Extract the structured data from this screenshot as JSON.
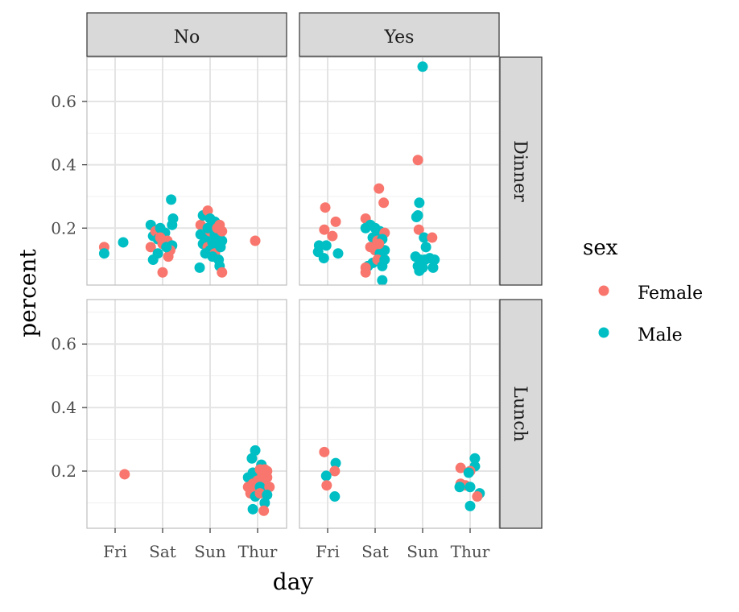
{
  "chart_data": {
    "type": "scatter",
    "xlabel": "day",
    "ylabel": "percent",
    "categories": [
      "Fri",
      "Sat",
      "Sun",
      "Thur"
    ],
    "ylim": [
      0.02,
      0.74
    ],
    "yticks": [
      0.2,
      0.4,
      0.6
    ],
    "grid": true,
    "legend": {
      "title": "sex",
      "position": "right",
      "entries": [
        {
          "name": "Female",
          "color": "#F8766D"
        },
        {
          "name": "Male",
          "color": "#00BFC4"
        }
      ]
    },
    "facet_cols": [
      "No",
      "Yes"
    ],
    "facet_rows": [
      "Dinner",
      "Lunch"
    ],
    "panels": [
      {
        "col": "No",
        "row": "Dinner",
        "points": [
          {
            "x": "Fri",
            "j": -0.23,
            "y": 0.14,
            "sex": "Female"
          },
          {
            "x": "Fri",
            "j": -0.23,
            "y": 0.12,
            "sex": "Male"
          },
          {
            "x": "Fri",
            "j": 0.17,
            "y": 0.155,
            "sex": "Male"
          },
          {
            "x": "Sat",
            "j": -0.25,
            "y": 0.21,
            "sex": "Male"
          },
          {
            "x": "Sat",
            "j": -0.2,
            "y": 0.175,
            "sex": "Male"
          },
          {
            "x": "Sat",
            "j": -0.25,
            "y": 0.14,
            "sex": "Female"
          },
          {
            "x": "Sat",
            "j": -0.15,
            "y": 0.19,
            "sex": "Female"
          },
          {
            "x": "Sat",
            "j": -0.1,
            "y": 0.165,
            "sex": "Male"
          },
          {
            "x": "Sat",
            "j": -0.05,
            "y": 0.2,
            "sex": "Male"
          },
          {
            "x": "Sat",
            "j": 0.0,
            "y": 0.15,
            "sex": "Female"
          },
          {
            "x": "Sat",
            "j": 0.05,
            "y": 0.185,
            "sex": "Male"
          },
          {
            "x": "Sat",
            "j": 0.1,
            "y": 0.16,
            "sex": "Female"
          },
          {
            "x": "Sat",
            "j": 0.15,
            "y": 0.13,
            "sex": "Male"
          },
          {
            "x": "Sat",
            "j": 0.2,
            "y": 0.21,
            "sex": "Male"
          },
          {
            "x": "Sat",
            "j": 0.2,
            "y": 0.145,
            "sex": "Male"
          },
          {
            "x": "Sat",
            "j": 0.18,
            "y": 0.29,
            "sex": "Male"
          },
          {
            "x": "Sat",
            "j": 0.22,
            "y": 0.23,
            "sex": "Male"
          },
          {
            "x": "Sat",
            "j": -0.2,
            "y": 0.1,
            "sex": "Male"
          },
          {
            "x": "Sat",
            "j": -0.1,
            "y": 0.12,
            "sex": "Male"
          },
          {
            "x": "Sat",
            "j": 0.0,
            "y": 0.06,
            "sex": "Female"
          },
          {
            "x": "Sat",
            "j": 0.12,
            "y": 0.11,
            "sex": "Female"
          },
          {
            "x": "Sat",
            "j": 0.16,
            "y": 0.13,
            "sex": "Female"
          },
          {
            "x": "Sat",
            "j": -0.05,
            "y": 0.17,
            "sex": "Female"
          },
          {
            "x": "Sat",
            "j": 0.08,
            "y": 0.14,
            "sex": "Male"
          },
          {
            "x": "Sun",
            "j": -0.2,
            "y": 0.21,
            "sex": "Female"
          },
          {
            "x": "Sun",
            "j": -0.15,
            "y": 0.24,
            "sex": "Male"
          },
          {
            "x": "Sun",
            "j": -0.05,
            "y": 0.255,
            "sex": "Female"
          },
          {
            "x": "Sun",
            "j": 0.0,
            "y": 0.23,
            "sex": "Male"
          },
          {
            "x": "Sun",
            "j": 0.1,
            "y": 0.22,
            "sex": "Male"
          },
          {
            "x": "Sun",
            "j": 0.2,
            "y": 0.21,
            "sex": "Female"
          },
          {
            "x": "Sun",
            "j": -0.2,
            "y": 0.18,
            "sex": "Male"
          },
          {
            "x": "Sun",
            "j": -0.1,
            "y": 0.17,
            "sex": "Male"
          },
          {
            "x": "Sun",
            "j": 0.0,
            "y": 0.19,
            "sex": "Female"
          },
          {
            "x": "Sun",
            "j": 0.1,
            "y": 0.18,
            "sex": "Male"
          },
          {
            "x": "Sun",
            "j": 0.2,
            "y": 0.17,
            "sex": "Male"
          },
          {
            "x": "Sun",
            "j": -0.15,
            "y": 0.15,
            "sex": "Male"
          },
          {
            "x": "Sun",
            "j": -0.05,
            "y": 0.14,
            "sex": "Female"
          },
          {
            "x": "Sun",
            "j": 0.05,
            "y": 0.155,
            "sex": "Male"
          },
          {
            "x": "Sun",
            "j": 0.15,
            "y": 0.15,
            "sex": "Male"
          },
          {
            "x": "Sun",
            "j": 0.25,
            "y": 0.16,
            "sex": "Male"
          },
          {
            "x": "Sun",
            "j": -0.1,
            "y": 0.12,
            "sex": "Male"
          },
          {
            "x": "Sun",
            "j": 0.0,
            "y": 0.13,
            "sex": "Male"
          },
          {
            "x": "Sun",
            "j": 0.1,
            "y": 0.12,
            "sex": "Female"
          },
          {
            "x": "Sun",
            "j": 0.18,
            "y": 0.1,
            "sex": "Male"
          },
          {
            "x": "Sun",
            "j": -0.22,
            "y": 0.075,
            "sex": "Male"
          },
          {
            "x": "Sun",
            "j": 0.2,
            "y": 0.08,
            "sex": "Male"
          },
          {
            "x": "Sun",
            "j": 0.25,
            "y": 0.06,
            "sex": "Female"
          },
          {
            "x": "Sun",
            "j": 0.05,
            "y": 0.11,
            "sex": "Male"
          },
          {
            "x": "Sun",
            "j": -0.05,
            "y": 0.2,
            "sex": "Male"
          },
          {
            "x": "Sun",
            "j": 0.15,
            "y": 0.2,
            "sex": "Female"
          },
          {
            "x": "Sun",
            "j": 0.25,
            "y": 0.19,
            "sex": "Female"
          },
          {
            "x": "Sun",
            "j": 0.22,
            "y": 0.14,
            "sex": "Male"
          },
          {
            "x": "Thur",
            "j": -0.05,
            "y": 0.16,
            "sex": "Female"
          }
        ]
      },
      {
        "col": "Yes",
        "row": "Dinner",
        "points": [
          {
            "x": "Fri",
            "j": -0.2,
            "y": 0.125,
            "sex": "Male"
          },
          {
            "x": "Fri",
            "j": -0.18,
            "y": 0.145,
            "sex": "Male"
          },
          {
            "x": "Fri",
            "j": -0.05,
            "y": 0.265,
            "sex": "Female"
          },
          {
            "x": "Fri",
            "j": -0.07,
            "y": 0.195,
            "sex": "Female"
          },
          {
            "x": "Fri",
            "j": 0.17,
            "y": 0.22,
            "sex": "Female"
          },
          {
            "x": "Fri",
            "j": 0.1,
            "y": 0.175,
            "sex": "Female"
          },
          {
            "x": "Fri",
            "j": -0.03,
            "y": 0.145,
            "sex": "Male"
          },
          {
            "x": "Fri",
            "j": -0.08,
            "y": 0.105,
            "sex": "Male"
          },
          {
            "x": "Fri",
            "j": 0.22,
            "y": 0.12,
            "sex": "Male"
          },
          {
            "x": "Sat",
            "j": 0.08,
            "y": 0.325,
            "sex": "Female"
          },
          {
            "x": "Sat",
            "j": 0.18,
            "y": 0.28,
            "sex": "Female"
          },
          {
            "x": "Sat",
            "j": -0.2,
            "y": 0.23,
            "sex": "Female"
          },
          {
            "x": "Sat",
            "j": -0.2,
            "y": 0.2,
            "sex": "Male"
          },
          {
            "x": "Sat",
            "j": -0.1,
            "y": 0.21,
            "sex": "Male"
          },
          {
            "x": "Sat",
            "j": 0.0,
            "y": 0.2,
            "sex": "Male"
          },
          {
            "x": "Sat",
            "j": 0.1,
            "y": 0.19,
            "sex": "Male"
          },
          {
            "x": "Sat",
            "j": 0.2,
            "y": 0.185,
            "sex": "Female"
          },
          {
            "x": "Sat",
            "j": -0.05,
            "y": 0.17,
            "sex": "Male"
          },
          {
            "x": "Sat",
            "j": 0.05,
            "y": 0.16,
            "sex": "Female"
          },
          {
            "x": "Sat",
            "j": 0.15,
            "y": 0.165,
            "sex": "Male"
          },
          {
            "x": "Sat",
            "j": -0.1,
            "y": 0.14,
            "sex": "Female"
          },
          {
            "x": "Sat",
            "j": 0.0,
            "y": 0.13,
            "sex": "Female"
          },
          {
            "x": "Sat",
            "j": 0.1,
            "y": 0.12,
            "sex": "Male"
          },
          {
            "x": "Sat",
            "j": 0.2,
            "y": 0.13,
            "sex": "Male"
          },
          {
            "x": "Sat",
            "j": -0.15,
            "y": 0.08,
            "sex": "Male"
          },
          {
            "x": "Sat",
            "j": -0.05,
            "y": 0.09,
            "sex": "Male"
          },
          {
            "x": "Sat",
            "j": 0.05,
            "y": 0.1,
            "sex": "Female"
          },
          {
            "x": "Sat",
            "j": 0.15,
            "y": 0.08,
            "sex": "Male"
          },
          {
            "x": "Sat",
            "j": 0.2,
            "y": 0.1,
            "sex": "Male"
          },
          {
            "x": "Sat",
            "j": -0.2,
            "y": 0.06,
            "sex": "Female"
          },
          {
            "x": "Sat",
            "j": -0.2,
            "y": 0.075,
            "sex": "Female"
          },
          {
            "x": "Sat",
            "j": 0.15,
            "y": 0.035,
            "sex": "Male"
          },
          {
            "x": "Sat",
            "j": 0.08,
            "y": 0.15,
            "sex": "Female"
          },
          {
            "x": "Sun",
            "j": 0.0,
            "y": 0.71,
            "sex": "Male"
          },
          {
            "x": "Sun",
            "j": -0.1,
            "y": 0.415,
            "sex": "Female"
          },
          {
            "x": "Sun",
            "j": -0.07,
            "y": 0.28,
            "sex": "Male"
          },
          {
            "x": "Sun",
            "j": -0.1,
            "y": 0.24,
            "sex": "Male"
          },
          {
            "x": "Sun",
            "j": -0.13,
            "y": 0.235,
            "sex": "Male"
          },
          {
            "x": "Sun",
            "j": -0.08,
            "y": 0.195,
            "sex": "Female"
          },
          {
            "x": "Sun",
            "j": 0.03,
            "y": 0.17,
            "sex": "Male"
          },
          {
            "x": "Sun",
            "j": 0.2,
            "y": 0.17,
            "sex": "Female"
          },
          {
            "x": "Sun",
            "j": 0.07,
            "y": 0.14,
            "sex": "Male"
          },
          {
            "x": "Sun",
            "j": -0.15,
            "y": 0.11,
            "sex": "Male"
          },
          {
            "x": "Sun",
            "j": -0.05,
            "y": 0.1,
            "sex": "Male"
          },
          {
            "x": "Sun",
            "j": 0.05,
            "y": 0.1,
            "sex": "Male"
          },
          {
            "x": "Sun",
            "j": 0.15,
            "y": 0.105,
            "sex": "Male"
          },
          {
            "x": "Sun",
            "j": 0.25,
            "y": 0.1,
            "sex": "Male"
          },
          {
            "x": "Sun",
            "j": -0.1,
            "y": 0.08,
            "sex": "Male"
          },
          {
            "x": "Sun",
            "j": 0.0,
            "y": 0.075,
            "sex": "Male"
          },
          {
            "x": "Sun",
            "j": 0.22,
            "y": 0.075,
            "sex": "Male"
          },
          {
            "x": "Sun",
            "j": -0.07,
            "y": 0.065,
            "sex": "Male"
          }
        ]
      },
      {
        "col": "No",
        "row": "Lunch",
        "points": [
          {
            "x": "Fri",
            "j": 0.2,
            "y": 0.19,
            "sex": "Female"
          },
          {
            "x": "Thur",
            "j": -0.15,
            "y": 0.155,
            "sex": "Male"
          },
          {
            "x": "Thur",
            "j": -0.2,
            "y": 0.18,
            "sex": "Male"
          },
          {
            "x": "Thur",
            "j": -0.1,
            "y": 0.195,
            "sex": "Male"
          },
          {
            "x": "Thur",
            "j": -0.12,
            "y": 0.24,
            "sex": "Male"
          },
          {
            "x": "Thur",
            "j": -0.05,
            "y": 0.265,
            "sex": "Male"
          },
          {
            "x": "Thur",
            "j": 0.08,
            "y": 0.22,
            "sex": "Male"
          },
          {
            "x": "Thur",
            "j": 0.05,
            "y": 0.205,
            "sex": "Female"
          },
          {
            "x": "Thur",
            "j": 0.15,
            "y": 0.205,
            "sex": "Female"
          },
          {
            "x": "Thur",
            "j": 0.2,
            "y": 0.2,
            "sex": "Female"
          },
          {
            "x": "Thur",
            "j": 0.1,
            "y": 0.19,
            "sex": "Female"
          },
          {
            "x": "Thur",
            "j": 0.2,
            "y": 0.18,
            "sex": "Female"
          },
          {
            "x": "Thur",
            "j": -0.2,
            "y": 0.15,
            "sex": "Female"
          },
          {
            "x": "Thur",
            "j": -0.1,
            "y": 0.16,
            "sex": "Female"
          },
          {
            "x": "Thur",
            "j": 0.0,
            "y": 0.17,
            "sex": "Female"
          },
          {
            "x": "Thur",
            "j": 0.1,
            "y": 0.17,
            "sex": "Female"
          },
          {
            "x": "Thur",
            "j": -0.05,
            "y": 0.14,
            "sex": "Female"
          },
          {
            "x": "Thur",
            "j": 0.05,
            "y": 0.15,
            "sex": "Male"
          },
          {
            "x": "Thur",
            "j": 0.15,
            "y": 0.14,
            "sex": "Male"
          },
          {
            "x": "Thur",
            "j": 0.25,
            "y": 0.15,
            "sex": "Female"
          },
          {
            "x": "Thur",
            "j": -0.15,
            "y": 0.13,
            "sex": "Female"
          },
          {
            "x": "Thur",
            "j": -0.05,
            "y": 0.12,
            "sex": "Male"
          },
          {
            "x": "Thur",
            "j": 0.05,
            "y": 0.13,
            "sex": "Female"
          },
          {
            "x": "Thur",
            "j": 0.2,
            "y": 0.125,
            "sex": "Male"
          },
          {
            "x": "Thur",
            "j": 0.15,
            "y": 0.1,
            "sex": "Male"
          },
          {
            "x": "Thur",
            "j": -0.1,
            "y": 0.08,
            "sex": "Male"
          },
          {
            "x": "Thur",
            "j": 0.13,
            "y": 0.075,
            "sex": "Female"
          }
        ]
      },
      {
        "col": "Yes",
        "row": "Lunch",
        "points": [
          {
            "x": "Fri",
            "j": -0.07,
            "y": 0.26,
            "sex": "Female"
          },
          {
            "x": "Fri",
            "j": 0.17,
            "y": 0.225,
            "sex": "Male"
          },
          {
            "x": "Fri",
            "j": 0.15,
            "y": 0.2,
            "sex": "Female"
          },
          {
            "x": "Fri",
            "j": -0.03,
            "y": 0.185,
            "sex": "Male"
          },
          {
            "x": "Fri",
            "j": -0.02,
            "y": 0.155,
            "sex": "Female"
          },
          {
            "x": "Fri",
            "j": 0.15,
            "y": 0.12,
            "sex": "Male"
          },
          {
            "x": "Thur",
            "j": 0.1,
            "y": 0.24,
            "sex": "Male"
          },
          {
            "x": "Thur",
            "j": 0.1,
            "y": 0.215,
            "sex": "Male"
          },
          {
            "x": "Thur",
            "j": -0.2,
            "y": 0.21,
            "sex": "Female"
          },
          {
            "x": "Thur",
            "j": 0.0,
            "y": 0.2,
            "sex": "Female"
          },
          {
            "x": "Thur",
            "j": -0.03,
            "y": 0.195,
            "sex": "Male"
          },
          {
            "x": "Thur",
            "j": -0.2,
            "y": 0.16,
            "sex": "Female"
          },
          {
            "x": "Thur",
            "j": -0.1,
            "y": 0.155,
            "sex": "Female"
          },
          {
            "x": "Thur",
            "j": -0.22,
            "y": 0.15,
            "sex": "Male"
          },
          {
            "x": "Thur",
            "j": 0.0,
            "y": 0.15,
            "sex": "Male"
          },
          {
            "x": "Thur",
            "j": 0.2,
            "y": 0.13,
            "sex": "Male"
          },
          {
            "x": "Thur",
            "j": 0.15,
            "y": 0.12,
            "sex": "Female"
          },
          {
            "x": "Thur",
            "j": 0.0,
            "y": 0.09,
            "sex": "Male"
          }
        ]
      }
    ]
  }
}
